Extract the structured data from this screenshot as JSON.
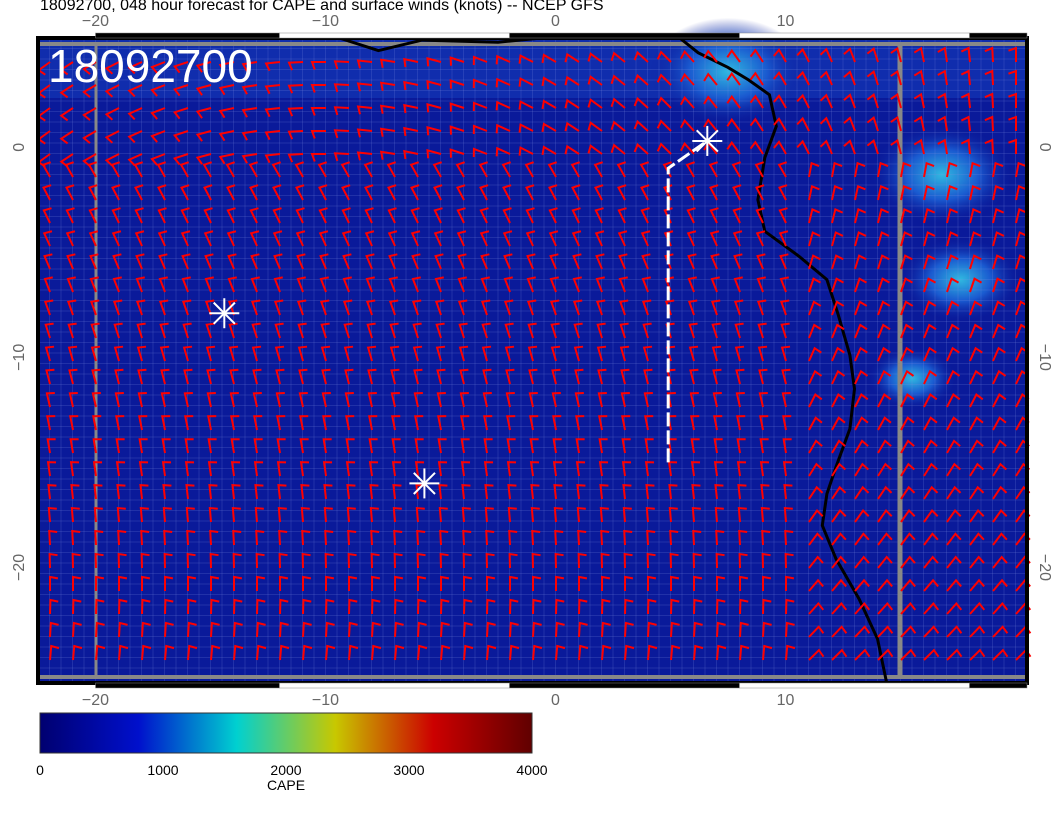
{
  "title": "18092700, 048 hour forecast for CAPE and surface winds (knots) -- NCEP GFS",
  "stamp": "18092700",
  "map": {
    "lon_range": [
      -22.5,
      20.5
    ],
    "lat_range": [
      -25.5,
      5.2
    ],
    "x_ticks": [
      {
        "v": -20,
        "label": "−20"
      },
      {
        "v": -10,
        "label": "−10"
      },
      {
        "v": 0,
        "label": "0"
      },
      {
        "v": 10,
        "label": "10"
      }
    ],
    "y_ticks": [
      {
        "v": 0,
        "label": "0"
      },
      {
        "v": -10,
        "label": "−10"
      },
      {
        "v": -20,
        "label": "−20"
      }
    ],
    "background_color": "#0a1a9a",
    "barb_color": "#ff0000",
    "marker_color": "#ffffff",
    "markers": [
      {
        "lon": -14.4,
        "lat": -7.9
      },
      {
        "lon": -5.7,
        "lat": -16.0
      },
      {
        "lon": 6.6,
        "lat": 0.3
      }
    ],
    "track": [
      [
        4.9,
        -15
      ],
      [
        4.9,
        -1.0
      ],
      [
        6.6,
        0.3
      ]
    ],
    "coastline": [
      [
        5.4,
        5.2
      ],
      [
        6.2,
        4.5
      ],
      [
        7.5,
        3.8
      ],
      [
        8.4,
        3.2
      ],
      [
        9.3,
        2.5
      ],
      [
        9.6,
        1.0
      ],
      [
        9.1,
        -0.5
      ],
      [
        8.8,
        -2.5
      ],
      [
        9.1,
        -4.0
      ],
      [
        10.6,
        -5.2
      ],
      [
        11.8,
        -6.3
      ],
      [
        12.3,
        -8.0
      ],
      [
        12.8,
        -9.9
      ],
      [
        13.0,
        -11.5
      ],
      [
        12.8,
        -13.4
      ],
      [
        12.2,
        -15.2
      ],
      [
        11.8,
        -16.5
      ],
      [
        11.6,
        -18
      ],
      [
        12.2,
        -19.6
      ],
      [
        13.2,
        -21.5
      ],
      [
        14.0,
        -23.4
      ],
      [
        14.4,
        -25.5
      ]
    ],
    "north_coast": [
      [
        -9.4,
        5.2
      ],
      [
        -7.7,
        4.6
      ],
      [
        -5.8,
        5.1
      ],
      [
        -2.5,
        5.0
      ],
      [
        -0.6,
        5.2
      ]
    ],
    "cape_patches": [
      {
        "lon": 7.5,
        "lat": 3.6,
        "level": 1400
      },
      {
        "lon": 16.8,
        "lat": -1.3,
        "level": 1300
      },
      {
        "lon": 17.6,
        "lat": -6.3,
        "level": 1100
      },
      {
        "lon": 15.5,
        "lat": -11,
        "level": 800
      }
    ]
  },
  "colorbar": {
    "label": "CAPE",
    "min": 0,
    "max": 4000,
    "ticks": [
      "0",
      "1000",
      "2000",
      "3000",
      "4000"
    ],
    "stops": [
      "#000070",
      "#0010cc",
      "#00d0d0",
      "#c8c800",
      "#cc0000",
      "#600000"
    ]
  }
}
